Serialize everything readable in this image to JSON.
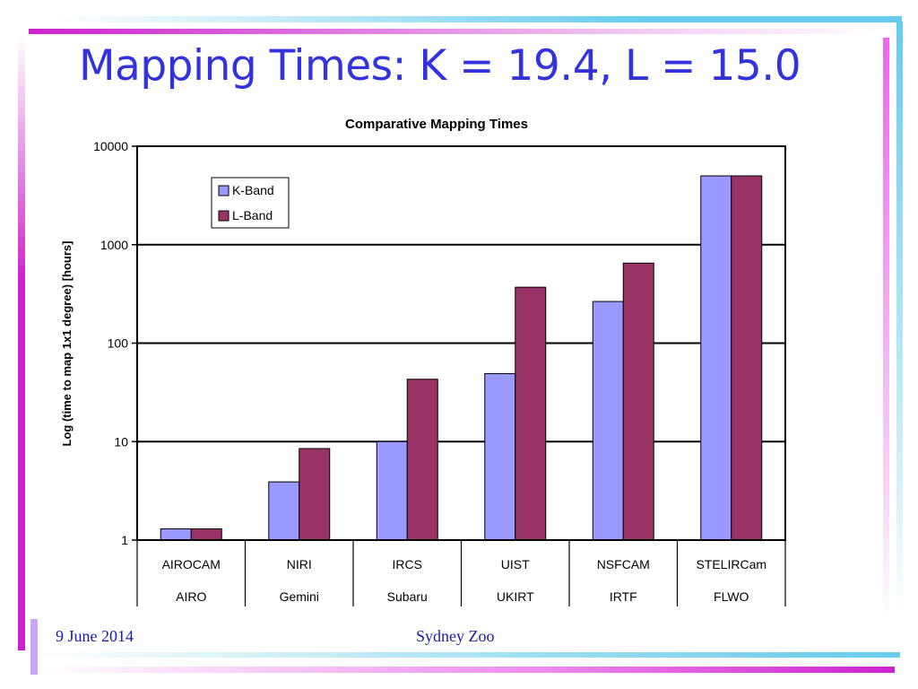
{
  "slide": {
    "title": "Mapping Times: K = 19.4, L = 15.0",
    "footer_date": "9 June 2014",
    "footer_center": "Sydney Zoo",
    "accent_colors": {
      "title": "#3333dd",
      "footer": "#1a1aa0",
      "magenta": "#cc22cc",
      "cyan": "#66ccee"
    }
  },
  "chart_data": {
    "type": "bar",
    "title": "Comparative Mapping Times",
    "ylabel": "Log (time to map 1x1 degree) [hours]",
    "xlabel": "",
    "yscale": "log",
    "ylim": [
      1,
      10000
    ],
    "yticks": [
      "1",
      "10",
      "100",
      "1000",
      "10000"
    ],
    "grid": true,
    "legend": "top-left",
    "categories": [
      "AIROCAM",
      "NIRI",
      "IRCS",
      "UIST",
      "NSFCAM",
      "STELIRCam"
    ],
    "groups": [
      "AIRO",
      "Gemini",
      "Subaru",
      "UKIRT",
      "IRTF",
      "FLWO"
    ],
    "series": [
      {
        "name": "K-Band",
        "color": "#9999ff",
        "values": [
          1.3,
          3.9,
          10,
          49,
          265,
          5000
        ]
      },
      {
        "name": "L-Band",
        "color": "#993366",
        "values": [
          1.3,
          8.5,
          43,
          370,
          650,
          5000
        ]
      }
    ]
  }
}
